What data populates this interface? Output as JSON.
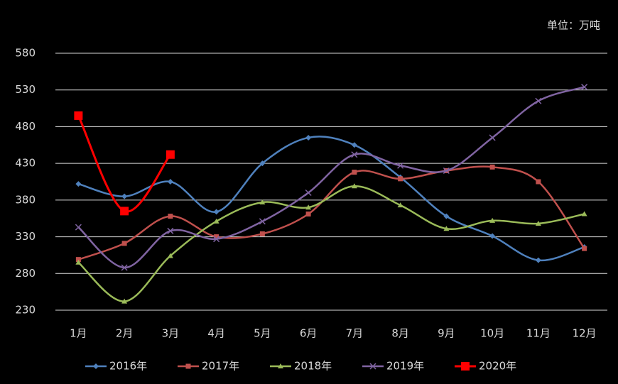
{
  "chart_data": {
    "type": "line",
    "unit_label": "单位：万吨",
    "categories": [
      "1月",
      "2月",
      "3月",
      "4月",
      "5月",
      "6月",
      "7月",
      "8月",
      "9月",
      "10月",
      "11月",
      "12月"
    ],
    "ylim": [
      230,
      580
    ],
    "yticks": [
      230,
      280,
      330,
      380,
      430,
      480,
      530,
      580
    ],
    "grid": true,
    "legend": "bottom",
    "series": [
      {
        "name": "2016年",
        "color": "#4f81bd",
        "marker": "diamond",
        "values": [
          402,
          385,
          405,
          364,
          430,
          465,
          455,
          411,
          358,
          331,
          298,
          316
        ]
      },
      {
        "name": "2017年",
        "color": "#c0504d",
        "marker": "square",
        "values": [
          299,
          321,
          358,
          330,
          334,
          361,
          418,
          409,
          420,
          425,
          405,
          314
        ]
      },
      {
        "name": "2018年",
        "color": "#9bbb59",
        "marker": "triangle",
        "values": [
          295,
          242,
          304,
          351,
          377,
          370,
          399,
          373,
          341,
          352,
          348,
          361
        ]
      },
      {
        "name": "2019年",
        "color": "#8064a2",
        "marker": "x",
        "values": [
          343,
          288,
          338,
          327,
          351,
          390,
          442,
          427,
          420,
          465,
          515,
          534
        ]
      },
      {
        "name": "2020年",
        "color": "#ff0000",
        "marker": "bigsquare",
        "values": [
          495,
          365,
          442,
          null,
          null,
          null,
          null,
          null,
          null,
          null,
          null,
          null
        ]
      }
    ]
  }
}
